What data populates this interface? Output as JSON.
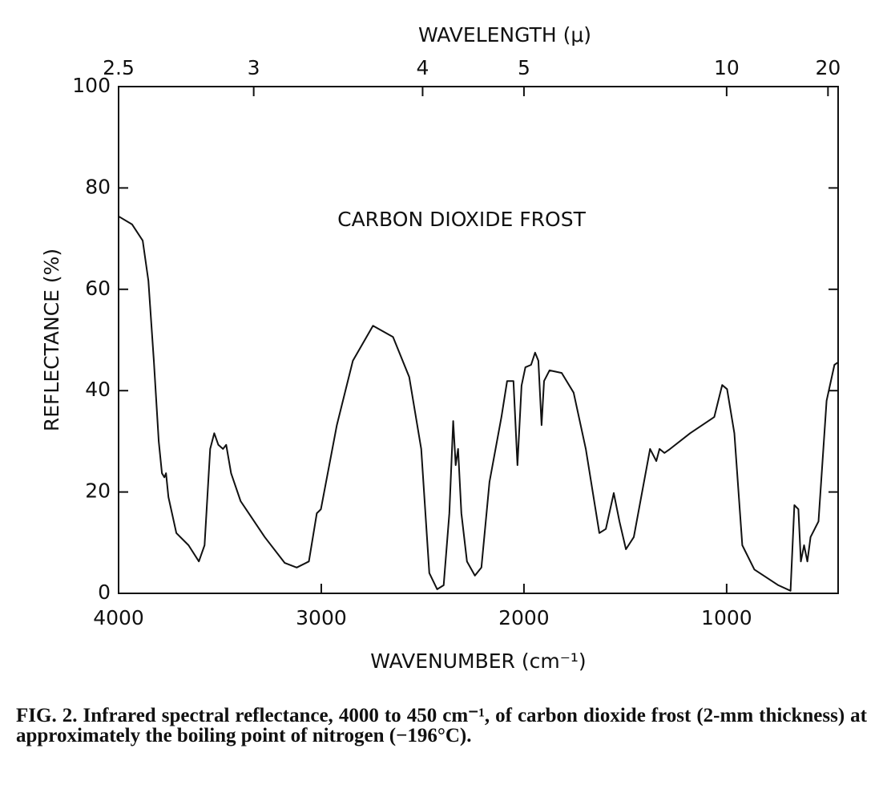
{
  "chart_data": {
    "type": "line",
    "title": "WAVELENGTH (μ)",
    "annotation": "CARBON DIOXIDE FROST",
    "xlabel": "WAVENUMBER (cm⁻¹)",
    "ylabel": "REFLECTANCE (%)",
    "caption": "FIG. 2. Infrared spectral reflectance, 4000 to 450 cm⁻¹, of carbon dioxide frost (2-mm thickness) at approximately the boiling point of nitrogen (−196°C).",
    "xlim": [
      4000,
      450
    ],
    "xticks": [
      4000,
      3000,
      2000,
      1000
    ],
    "ylim": [
      0,
      100
    ],
    "yticks": [
      0,
      20,
      40,
      60,
      80,
      100
    ],
    "x2_scale": "reciprocal",
    "x2ticks": [
      2.5,
      3,
      4,
      5,
      10,
      20
    ],
    "grid": false,
    "series": [
      {
        "color": "#111111",
        "x": [
          4000,
          3933,
          3881,
          3853,
          3826,
          3802,
          3786,
          3774,
          3766,
          3754,
          3715,
          3655,
          3604,
          3576,
          3548,
          3528,
          3508,
          3485,
          3469,
          3445,
          3398,
          3279,
          3180,
          3121,
          3061,
          3022,
          3002,
          2923,
          2844,
          2745,
          2646,
          2566,
          2507,
          2467,
          2428,
          2396,
          2368,
          2349,
          2337,
          2325,
          2309,
          2281,
          2242,
          2210,
          2170,
          2111,
          2083,
          2052,
          2032,
          2012,
          1993,
          1965,
          1945,
          1929,
          1913,
          1901,
          1874,
          1814,
          1755,
          1695,
          1628,
          1596,
          1557,
          1529,
          1497,
          1458,
          1378,
          1347,
          1331,
          1307,
          1279,
          1180,
          1061,
          1022,
          998,
          962,
          923,
          863,
          745,
          685,
          666,
          646,
          634,
          618,
          602,
          586,
          547,
          507,
          468,
          450
        ],
        "values": [
          74.4,
          72.8,
          69.6,
          61.7,
          45.9,
          30,
          23.7,
          22.9,
          23.7,
          19,
          11.9,
          9.5,
          6.3,
          9.5,
          28.5,
          31.6,
          29.3,
          28.5,
          29.3,
          23.7,
          18.2,
          11.1,
          6,
          5.1,
          6.3,
          15.8,
          16.6,
          33.2,
          45.9,
          52.8,
          50.6,
          42.7,
          28.5,
          4,
          0.8,
          1.6,
          15.8,
          34,
          25.3,
          28.5,
          15.8,
          6.3,
          3.5,
          5.1,
          22,
          34.8,
          41.9,
          41.9,
          25.3,
          41,
          44.6,
          45.1,
          47.5,
          45.9,
          33.2,
          41.9,
          44,
          43.5,
          39.6,
          28.5,
          11.9,
          12.7,
          19.8,
          14.2,
          8.7,
          11.1,
          28.5,
          26.1,
          28.5,
          27.7,
          28.5,
          31.6,
          34.8,
          41.1,
          40.3,
          31.6,
          9.5,
          4.7,
          1.6,
          0.5,
          17.4,
          16.6,
          6.3,
          9.5,
          6.3,
          11.1,
          14.2,
          38,
          45.1,
          45.6
        ]
      }
    ]
  }
}
